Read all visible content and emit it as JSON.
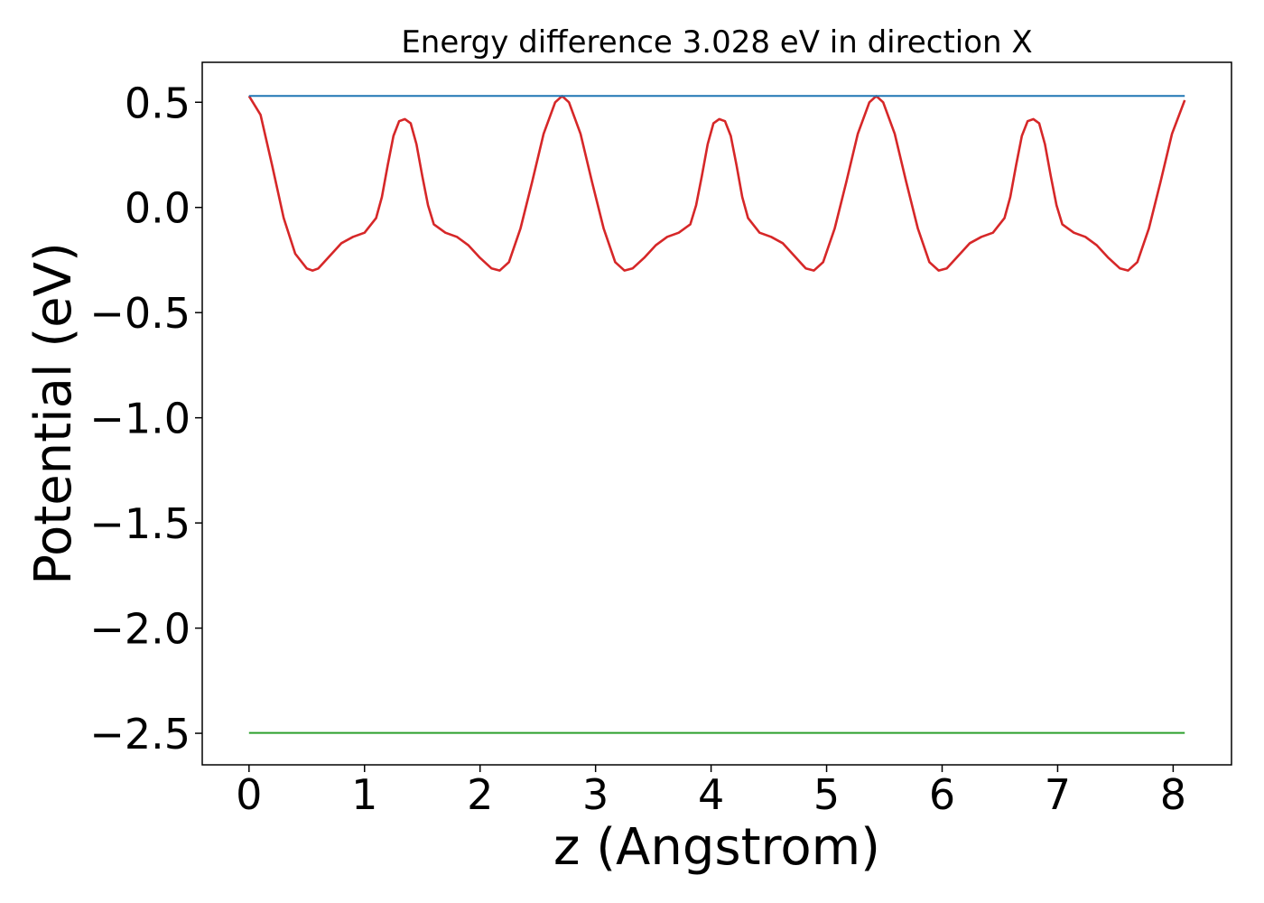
{
  "chart_data": {
    "type": "line",
    "title": "Energy difference 3.028 eV in direction X",
    "xlabel": "z (Angstrom)",
    "ylabel": "Potential (eV)",
    "xlim": [
      -0.405,
      8.505
    ],
    "ylim": [
      -2.65,
      0.69
    ],
    "x_ticks": [
      0,
      1,
      2,
      3,
      4,
      5,
      6,
      7,
      8
    ],
    "x_tick_labels": [
      "0",
      "1",
      "2",
      "3",
      "4",
      "5",
      "6",
      "7",
      "8"
    ],
    "y_ticks": [
      0.5,
      0.0,
      -0.5,
      -1.0,
      -1.5,
      -2.0,
      -2.5
    ],
    "y_tick_labels": [
      "0.5",
      "0.0",
      "−0.5",
      "−1.0",
      "−1.5",
      "−2.0",
      "−2.5"
    ],
    "grid": false,
    "legend": "none",
    "series": [
      {
        "color": "#d62728",
        "x": [
          0.0,
          0.1,
          0.2,
          0.3,
          0.4,
          0.5,
          0.55,
          0.6,
          0.7,
          0.8,
          0.9,
          1.0,
          1.1,
          1.15,
          1.2,
          1.25,
          1.3,
          1.35,
          1.4,
          1.45,
          1.5,
          1.55,
          1.6,
          1.7,
          1.8,
          1.9,
          2.0,
          2.1,
          2.17,
          2.25,
          2.35,
          2.45,
          2.55,
          2.65,
          2.71,
          2.77,
          2.87,
          2.97,
          3.07,
          3.17,
          3.25,
          3.32,
          3.42,
          3.52,
          3.62,
          3.72,
          3.82,
          3.87,
          3.92,
          3.97,
          4.02,
          4.07,
          4.12,
          4.17,
          4.22,
          4.27,
          4.32,
          4.42,
          4.52,
          4.62,
          4.72,
          4.82,
          4.89,
          4.97,
          5.07,
          5.17,
          5.27,
          5.37,
          5.43,
          5.49,
          5.59,
          5.69,
          5.79,
          5.89,
          5.97,
          6.04,
          6.14,
          6.24,
          6.34,
          6.44,
          6.54,
          6.59,
          6.64,
          6.69,
          6.74,
          6.79,
          6.84,
          6.89,
          6.94,
          6.99,
          7.04,
          7.14,
          7.24,
          7.34,
          7.44,
          7.54,
          7.61,
          7.69,
          7.79,
          7.89,
          7.99,
          8.1
        ],
        "y": [
          0.53,
          0.44,
          0.2,
          -0.05,
          -0.22,
          -0.29,
          -0.3,
          -0.29,
          -0.23,
          -0.17,
          -0.14,
          -0.12,
          -0.05,
          0.05,
          0.2,
          0.34,
          0.41,
          0.42,
          0.4,
          0.3,
          0.15,
          0.01,
          -0.08,
          -0.12,
          -0.14,
          -0.18,
          -0.24,
          -0.29,
          -0.3,
          -0.26,
          -0.1,
          0.12,
          0.35,
          0.5,
          0.53,
          0.5,
          0.35,
          0.12,
          -0.1,
          -0.26,
          -0.3,
          -0.29,
          -0.24,
          -0.18,
          -0.14,
          -0.12,
          -0.08,
          0.01,
          0.15,
          0.3,
          0.4,
          0.42,
          0.41,
          0.34,
          0.2,
          0.05,
          -0.05,
          -0.12,
          -0.14,
          -0.17,
          -0.23,
          -0.29,
          -0.3,
          -0.26,
          -0.1,
          0.12,
          0.35,
          0.5,
          0.53,
          0.5,
          0.35,
          0.12,
          -0.1,
          -0.26,
          -0.3,
          -0.29,
          -0.23,
          -0.17,
          -0.14,
          -0.12,
          -0.05,
          0.05,
          0.2,
          0.34,
          0.41,
          0.42,
          0.4,
          0.3,
          0.15,
          0.01,
          -0.08,
          -0.12,
          -0.14,
          -0.18,
          -0.24,
          -0.29,
          -0.3,
          -0.26,
          -0.1,
          0.12,
          0.35,
          0.51
        ]
      },
      {
        "color": "#1f77b4",
        "x": [
          0.0,
          8.1
        ],
        "y": [
          0.53,
          0.53
        ]
      },
      {
        "color": "#2ca02c",
        "x": [
          0.0,
          8.1
        ],
        "y": [
          -2.498,
          -2.498
        ]
      }
    ]
  }
}
